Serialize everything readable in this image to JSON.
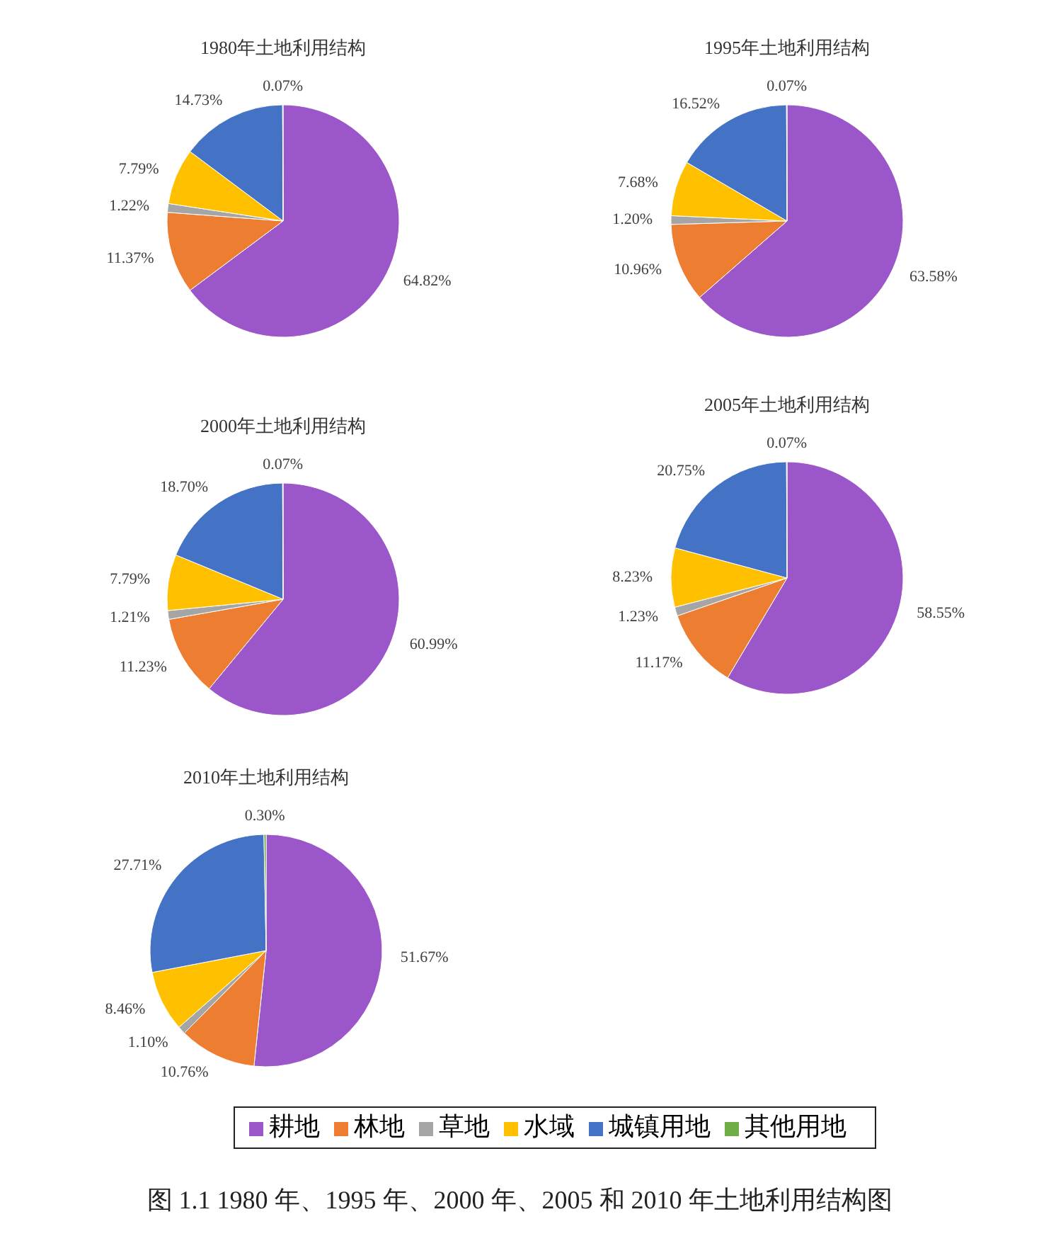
{
  "chart_data": [
    {
      "type": "pie",
      "title": "1980年土地利用结构",
      "categories": [
        null,
        null,
        null,
        null,
        null,
        null
      ],
      "values": [
        64.82,
        11.37,
        1.22,
        7.79,
        14.73,
        0.07
      ],
      "colors": [
        "#9b57c9",
        "#ed7d31",
        "#a5a5a5",
        "#ffc000",
        "#4472c4",
        "#70ad47"
      ],
      "value_labels": [
        "64.82%",
        "11.37%",
        "1.22%",
        "7.79%",
        "14.73%",
        "0.07%"
      ]
    },
    {
      "type": "pie",
      "title": "1995年土地利用结构",
      "categories": [
        null,
        null,
        null,
        null,
        null,
        null
      ],
      "values": [
        63.58,
        10.96,
        1.2,
        7.68,
        16.52,
        0.07
      ],
      "colors": [
        "#9b57c9",
        "#ed7d31",
        "#a5a5a5",
        "#ffc000",
        "#4472c4",
        "#70ad47"
      ],
      "value_labels": [
        "63.58%",
        "10.96%",
        "1.20%",
        "7.68%",
        "16.52%",
        "0.07%"
      ]
    },
    {
      "type": "pie",
      "title": "2000年土地利用结构",
      "categories": [
        null,
        null,
        null,
        null,
        null,
        null
      ],
      "values": [
        60.99,
        11.23,
        1.21,
        7.79,
        18.7,
        0.07
      ],
      "colors": [
        "#9b57c9",
        "#ed7d31",
        "#a5a5a5",
        "#ffc000",
        "#4472c4",
        "#70ad47"
      ],
      "value_labels": [
        "60.99%",
        "11.23%",
        "1.21%",
        "7.79%",
        "18.70%",
        "0.07%"
      ]
    },
    {
      "type": "pie",
      "title": "2005年土地利用结构",
      "categories": [
        null,
        null,
        null,
        null,
        null,
        null
      ],
      "values": [
        58.55,
        11.17,
        1.23,
        8.23,
        20.75,
        0.07
      ],
      "colors": [
        "#9b57c9",
        "#ed7d31",
        "#a5a5a5",
        "#ffc000",
        "#4472c4",
        "#70ad47"
      ],
      "value_labels": [
        "58.55%",
        "11.17%",
        "1.23%",
        "8.23%",
        "20.75%",
        "0.07%"
      ]
    },
    {
      "type": "pie",
      "title": "2010年土地利用结构",
      "categories": [
        "耕地",
        "林地",
        "草地",
        "水域",
        "城镇用地",
        "其他用地"
      ],
      "values": [
        51.67,
        10.76,
        1.1,
        8.46,
        27.71,
        0.3
      ],
      "colors": [
        "#9b57c9",
        "#ed7d31",
        "#a5a5a5",
        "#ffc000",
        "#4472c4",
        "#70ad47"
      ],
      "value_labels": [
        "51.67%",
        "10.76%",
        "1.10%",
        "8.46%",
        "27.71%",
        "0.30%"
      ],
      "legend": "bottom",
      "annotations": [
        "图 1.1 1980 年、1995 年、2000 年、2005 和 2010 年土地利用结构图"
      ]
    }
  ]
}
